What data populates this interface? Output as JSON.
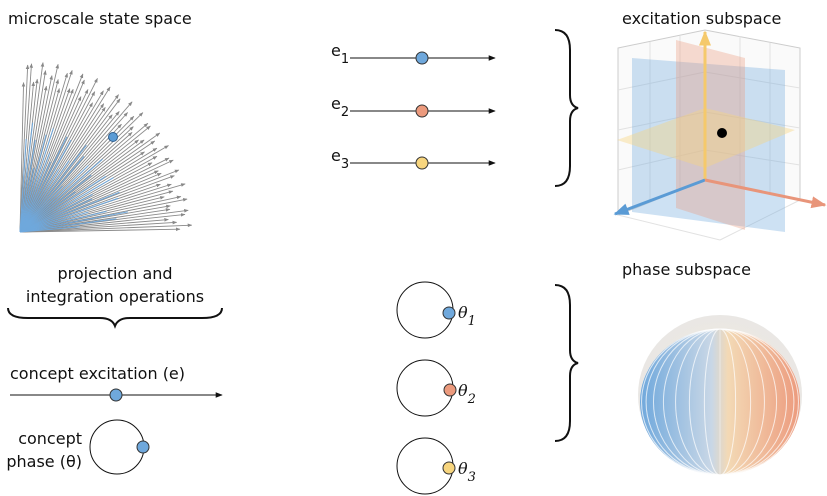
{
  "titles": {
    "microscale": "microscale state space",
    "excitation": "excitation subspace",
    "phase": "phase subspace"
  },
  "operations": [
    "projection and",
    "integration operations"
  ],
  "legend": {
    "excitation": "concept excitation (e)",
    "phase": [
      "concept",
      "phase (θ)"
    ]
  },
  "excitations": [
    {
      "symbol": "e",
      "index": "1"
    },
    {
      "symbol": "e",
      "index": "2"
    },
    {
      "symbol": "e",
      "index": "3"
    }
  ],
  "phases": [
    {
      "symbol": "θ",
      "index": "1"
    },
    {
      "symbol": "θ",
      "index": "2"
    },
    {
      "symbol": "θ",
      "index": "3"
    }
  ]
}
